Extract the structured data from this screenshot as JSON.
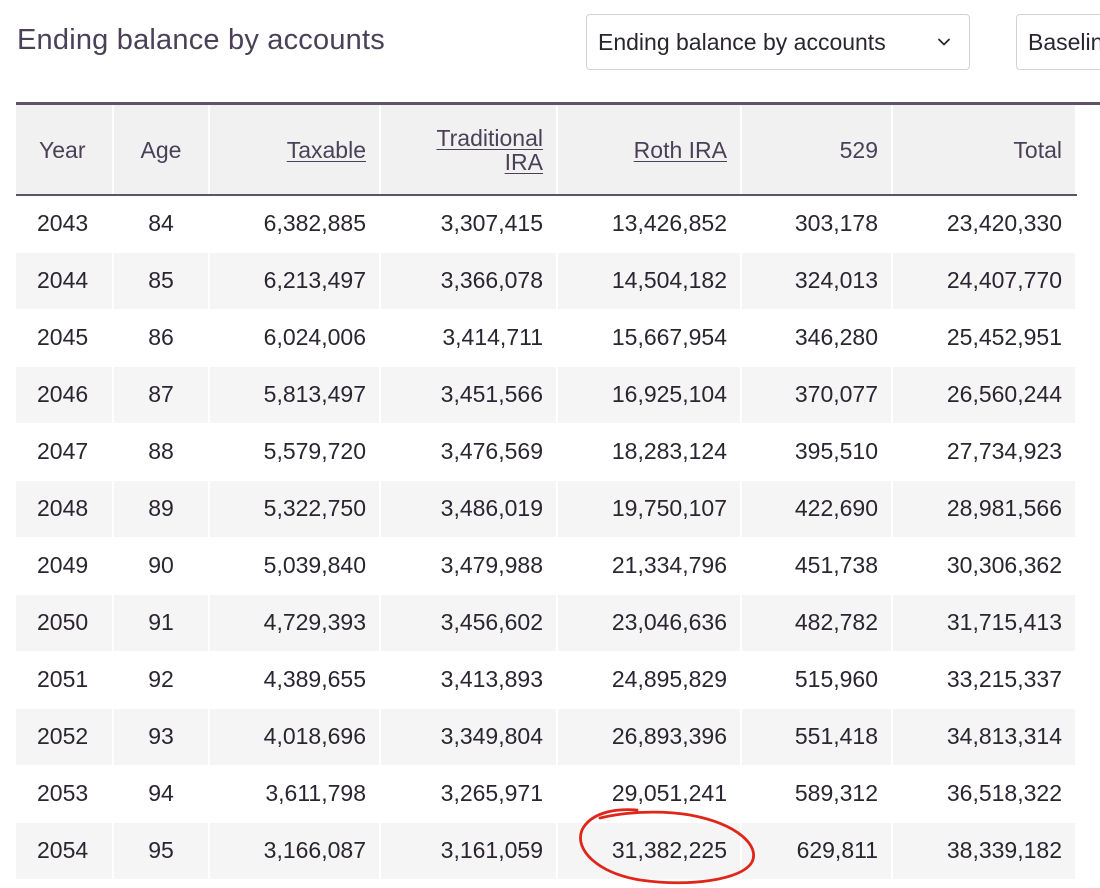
{
  "header": {
    "title": "Ending balance by accounts",
    "view_select": {
      "value": "Ending balance by accounts",
      "icon": "chevron-down-icon"
    },
    "scenario_select": {
      "value": "Baselin"
    }
  },
  "table": {
    "columns": [
      "Year",
      "Age",
      "Taxable",
      "Traditional IRA",
      "Roth IRA",
      "529",
      "Total"
    ],
    "column_labels": {
      "year": "Year",
      "age": "Age",
      "taxable": "Taxable",
      "traditional_line1": "Traditional",
      "traditional_line2": "IRA",
      "roth": "Roth IRA",
      "five29": "529",
      "total": "Total"
    },
    "rows": [
      [
        "2043",
        "84",
        "6,382,885",
        "3,307,415",
        "13,426,852",
        "303,178",
        "23,420,330"
      ],
      [
        "2044",
        "85",
        "6,213,497",
        "3,366,078",
        "14,504,182",
        "324,013",
        "24,407,770"
      ],
      [
        "2045",
        "86",
        "6,024,006",
        "3,414,711",
        "15,667,954",
        "346,280",
        "25,452,951"
      ],
      [
        "2046",
        "87",
        "5,813,497",
        "3,451,566",
        "16,925,104",
        "370,077",
        "26,560,244"
      ],
      [
        "2047",
        "88",
        "5,579,720",
        "3,476,569",
        "18,283,124",
        "395,510",
        "27,734,923"
      ],
      [
        "2048",
        "89",
        "5,322,750",
        "3,486,019",
        "19,750,107",
        "422,690",
        "28,981,566"
      ],
      [
        "2049",
        "90",
        "5,039,840",
        "3,479,988",
        "21,334,796",
        "451,738",
        "30,306,362"
      ],
      [
        "2050",
        "91",
        "4,729,393",
        "3,456,602",
        "23,046,636",
        "482,782",
        "31,715,413"
      ],
      [
        "2051",
        "92",
        "4,389,655",
        "3,413,893",
        "24,895,829",
        "515,960",
        "33,215,337"
      ],
      [
        "2052",
        "93",
        "4,018,696",
        "3,349,804",
        "26,893,396",
        "551,418",
        "34,813,314"
      ],
      [
        "2053",
        "94",
        "3,611,798",
        "3,265,971",
        "29,051,241",
        "589,312",
        "36,518,322"
      ],
      [
        "2054",
        "95",
        "3,166,087",
        "3,161,059",
        "31,382,225",
        "629,811",
        "38,339,182"
      ]
    ]
  },
  "annotation": {
    "color": "#e0261b"
  }
}
